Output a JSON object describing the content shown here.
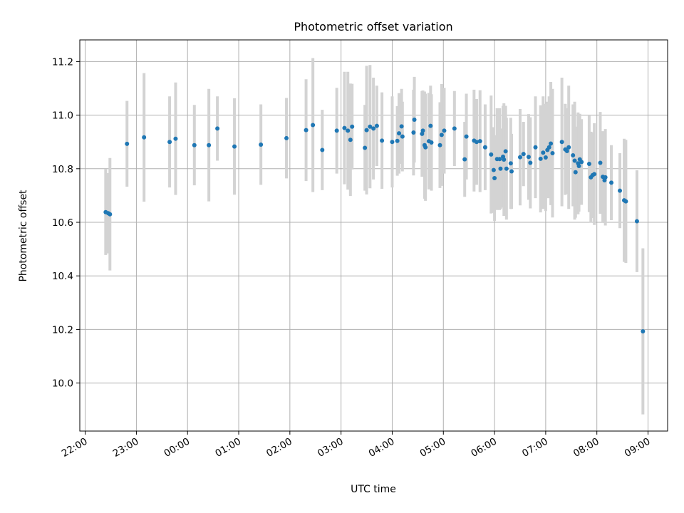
{
  "chart_data": {
    "type": "scatter",
    "title": "Photometric offset variation",
    "xlabel": "UTC time",
    "ylabel": "Photometric offset",
    "grid": true,
    "x_axis": {
      "type": "time",
      "start": "22:00",
      "end": "09:30"
    },
    "ylim": [
      9.82,
      11.28
    ],
    "x_ticks": [
      "22:00",
      "23:00",
      "00:00",
      "01:00",
      "02:00",
      "03:00",
      "04:00",
      "05:00",
      "06:00",
      "07:00",
      "08:00",
      "09:00"
    ],
    "y_ticks": [
      "10.0",
      "10.2",
      "10.4",
      "10.6",
      "10.8",
      "11.0",
      "11.2"
    ],
    "colors": {
      "marker": "#1f77b4",
      "errorbar": "#d3d3d3",
      "grid": "#b0b0b0"
    },
    "series": [
      {
        "columns": [
          "utc_time",
          "offset",
          "error"
        ],
        "points": [
          [
            "22:24",
            10.638,
            0.16
          ],
          [
            "22:27",
            10.634,
            0.15
          ],
          [
            "22:29",
            10.63,
            0.21
          ],
          [
            "22:49",
            10.893,
            0.16
          ],
          [
            "23:09",
            10.917,
            0.24
          ],
          [
            "23:39",
            10.9,
            0.17
          ],
          [
            "23:46",
            10.912,
            0.21
          ],
          [
            "00:08",
            10.888,
            0.15
          ],
          [
            "00:25",
            10.888,
            0.21
          ],
          [
            "00:35",
            10.95,
            0.12
          ],
          [
            "00:55",
            10.883,
            0.18
          ],
          [
            "01:26",
            10.89,
            0.15
          ],
          [
            "01:56",
            10.914,
            0.15
          ],
          [
            "02:19",
            10.944,
            0.19
          ],
          [
            "02:27",
            10.963,
            0.25
          ],
          [
            "02:38",
            10.87,
            0.15
          ],
          [
            "02:55",
            10.942,
            0.16
          ],
          [
            "03:04",
            10.952,
            0.21
          ],
          [
            "03:08",
            10.942,
            0.22
          ],
          [
            "03:11",
            10.908,
            0.21
          ],
          [
            "03:13",
            10.957,
            0.16
          ],
          [
            "03:28",
            10.878,
            0.16
          ],
          [
            "03:30",
            10.944,
            0.24
          ],
          [
            "03:34",
            10.957,
            0.23
          ],
          [
            "03:38",
            10.95,
            0.19
          ],
          [
            "03:42",
            10.96,
            0.15
          ],
          [
            "03:48",
            10.905,
            0.18
          ],
          [
            "04:00",
            10.9,
            0.17
          ],
          [
            "04:06",
            10.904,
            0.13
          ],
          [
            "04:08",
            10.932,
            0.15
          ],
          [
            "04:11",
            10.958,
            0.14
          ],
          [
            "04:12",
            10.92,
            0.13
          ],
          [
            "04:25",
            10.935,
            0.16
          ],
          [
            "04:26",
            10.983,
            0.16
          ],
          [
            "04:35",
            10.93,
            0.16
          ],
          [
            "04:36",
            10.942,
            0.15
          ],
          [
            "04:38",
            10.888,
            0.2
          ],
          [
            "04:39",
            10.88,
            0.2
          ],
          [
            "04:43",
            10.903,
            0.18
          ],
          [
            "04:45",
            10.96,
            0.15
          ],
          [
            "04:46",
            10.898,
            0.18
          ],
          [
            "04:56",
            10.888,
            0.16
          ],
          [
            "04:58",
            10.926,
            0.19
          ],
          [
            "05:01",
            10.942,
            0.16
          ],
          [
            "05:13",
            10.95,
            0.14
          ],
          [
            "05:25",
            10.835,
            0.14
          ],
          [
            "05:27",
            10.92,
            0.16
          ],
          [
            "05:36",
            10.905,
            0.19
          ],
          [
            "05:39",
            10.9,
            0.16
          ],
          [
            "05:43",
            10.903,
            0.19
          ],
          [
            "05:49",
            10.88,
            0.16
          ],
          [
            "05:56",
            10.853,
            0.22
          ],
          [
            "05:59",
            10.795,
            0.16
          ],
          [
            "06:00",
            10.765,
            0.16
          ],
          [
            "06:03",
            10.836,
            0.19
          ],
          [
            "06:06",
            10.836,
            0.19
          ],
          [
            "06:07",
            10.8,
            0.15
          ],
          [
            "06:10",
            10.845,
            0.19
          ],
          [
            "06:11",
            10.834,
            0.21
          ],
          [
            "06:13",
            10.865,
            0.17
          ],
          [
            "06:14",
            10.8,
            0.19
          ],
          [
            "06:19",
            10.82,
            0.17
          ],
          [
            "06:20",
            10.79,
            0.14
          ],
          [
            "06:30",
            10.843,
            0.18
          ],
          [
            "06:34",
            10.855,
            0.12
          ],
          [
            "06:40",
            10.844,
            0.16
          ],
          [
            "06:42",
            10.822,
            0.17
          ],
          [
            "06:48",
            10.88,
            0.19
          ],
          [
            "06:54",
            10.837,
            0.2
          ],
          [
            "06:57",
            10.86,
            0.21
          ],
          [
            "07:00",
            10.842,
            0.2
          ],
          [
            "07:02",
            10.87,
            0.18
          ],
          [
            "07:04",
            10.88,
            0.19
          ],
          [
            "07:06",
            10.894,
            0.23
          ],
          [
            "07:08",
            10.858,
            0.24
          ],
          [
            "07:19",
            10.9,
            0.24
          ],
          [
            "07:23",
            10.872,
            0.17
          ],
          [
            "07:25",
            10.866,
            0.16
          ],
          [
            "07:27",
            10.88,
            0.23
          ],
          [
            "07:32",
            10.85,
            0.19
          ],
          [
            "07:34",
            10.83,
            0.22
          ],
          [
            "07:35",
            10.787,
            0.17
          ],
          [
            "07:38",
            10.82,
            0.19
          ],
          [
            "07:39",
            10.81,
            0.17
          ],
          [
            "07:40",
            10.835,
            0.17
          ],
          [
            "07:42",
            10.825,
            0.16
          ],
          [
            "07:51",
            10.818,
            0.18
          ],
          [
            "07:53",
            10.768,
            0.17
          ],
          [
            "07:55",
            10.776,
            0.16
          ],
          [
            "07:57",
            10.78,
            0.19
          ],
          [
            "08:04",
            10.822,
            0.19
          ],
          [
            "08:07",
            10.77,
            0.17
          ],
          [
            "08:09",
            10.757,
            0.16
          ],
          [
            "08:10",
            10.768,
            0.18
          ],
          [
            "08:17",
            10.748,
            0.14
          ],
          [
            "08:27",
            10.718,
            0.14
          ],
          [
            "08:32",
            10.682,
            0.23
          ],
          [
            "08:34",
            10.678,
            0.23
          ],
          [
            "08:47",
            10.604,
            0.19
          ],
          [
            "08:54",
            10.193,
            0.31
          ]
        ]
      }
    ]
  }
}
